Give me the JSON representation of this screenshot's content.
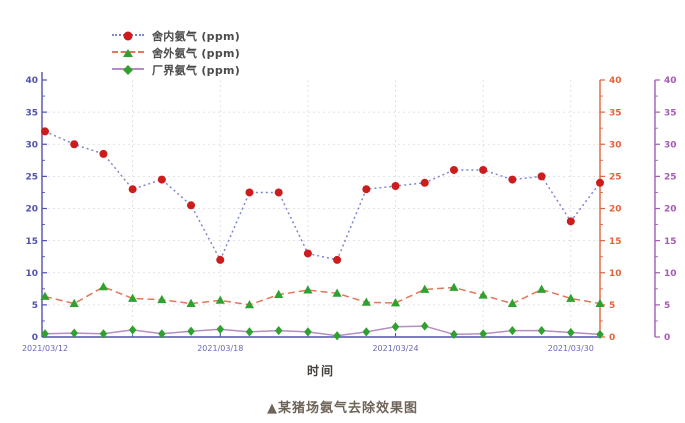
{
  "figure": {
    "caption": "▲某猪场氨气去除效果图",
    "background": "#ffffff"
  },
  "chart_data": {
    "type": "line",
    "title": "",
    "xlabel": "时间",
    "ylabel": "",
    "grid": true,
    "legend_position": "top-left",
    "x_dates": [
      "2021/03/12",
      "2021/03/13",
      "2021/03/14",
      "2021/03/15",
      "2021/03/16",
      "2021/03/17",
      "2021/03/18",
      "2021/03/19",
      "2021/03/20",
      "2021/03/21",
      "2021/03/22",
      "2021/03/23",
      "2021/03/24",
      "2021/03/25",
      "2021/03/26",
      "2021/03/27",
      "2021/03/28",
      "2021/03/29",
      "2021/03/30",
      "2021/03/31"
    ],
    "x_tick_labels": [
      "2021/03/12",
      "2021/03/18",
      "2021/03/24",
      "2021/03/30"
    ],
    "x_tick_indices": [
      0,
      6,
      12,
      18
    ],
    "x_minor_tick_indices": [
      3,
      9,
      15
    ],
    "x_gridline_indices": [
      3,
      6,
      9,
      12,
      15,
      18
    ],
    "axes": {
      "left": {
        "min": 0,
        "max": 40,
        "step": 5,
        "color": "#5151b0"
      },
      "right_inner": {
        "min": 0,
        "max": 40,
        "step": 5,
        "color": "#e2633a"
      },
      "right_outer": {
        "min": 0,
        "max": 40,
        "step": 5,
        "color": "#a55ab4"
      }
    },
    "colors": {
      "grid": "#dadada",
      "x_tick_label": "#6868b8"
    },
    "series": [
      {
        "key": "indoor",
        "name": "舍内氨气 (ppm)",
        "marker": "circle",
        "marker_color": "#cd1c1c",
        "line_color": "#7d88cf",
        "line_style": "dotted",
        "values": [
          32,
          30,
          28.5,
          23,
          24.5,
          20.5,
          12,
          22.5,
          22.5,
          13,
          12,
          23,
          23.5,
          24,
          26,
          26,
          24.5,
          25,
          18,
          24
        ]
      },
      {
        "key": "outdoor",
        "name": "舍外氨气 (ppm)",
        "marker": "triangle",
        "marker_color": "#2ea12e",
        "line_color": "#e4765c",
        "line_style": "dashed",
        "values": [
          6.3,
          5.2,
          7.8,
          6,
          5.8,
          5.2,
          5.7,
          5,
          6.6,
          7.3,
          6.8,
          5.4,
          5.3,
          7.4,
          7.7,
          6.5,
          5.2,
          7.4,
          6,
          5.2
        ]
      },
      {
        "key": "boundary",
        "name": "厂界氨气 (ppm)",
        "marker": "diamond",
        "marker_color": "#2ea12e",
        "line_color": "#b68cc4",
        "line_style": "solid",
        "values": [
          0.5,
          0.6,
          0.5,
          1.1,
          0.5,
          0.9,
          1.2,
          0.8,
          1,
          0.8,
          0.2,
          0.8,
          1.6,
          1.7,
          0.4,
          0.5,
          1,
          1,
          0.7,
          0.4
        ]
      }
    ]
  }
}
